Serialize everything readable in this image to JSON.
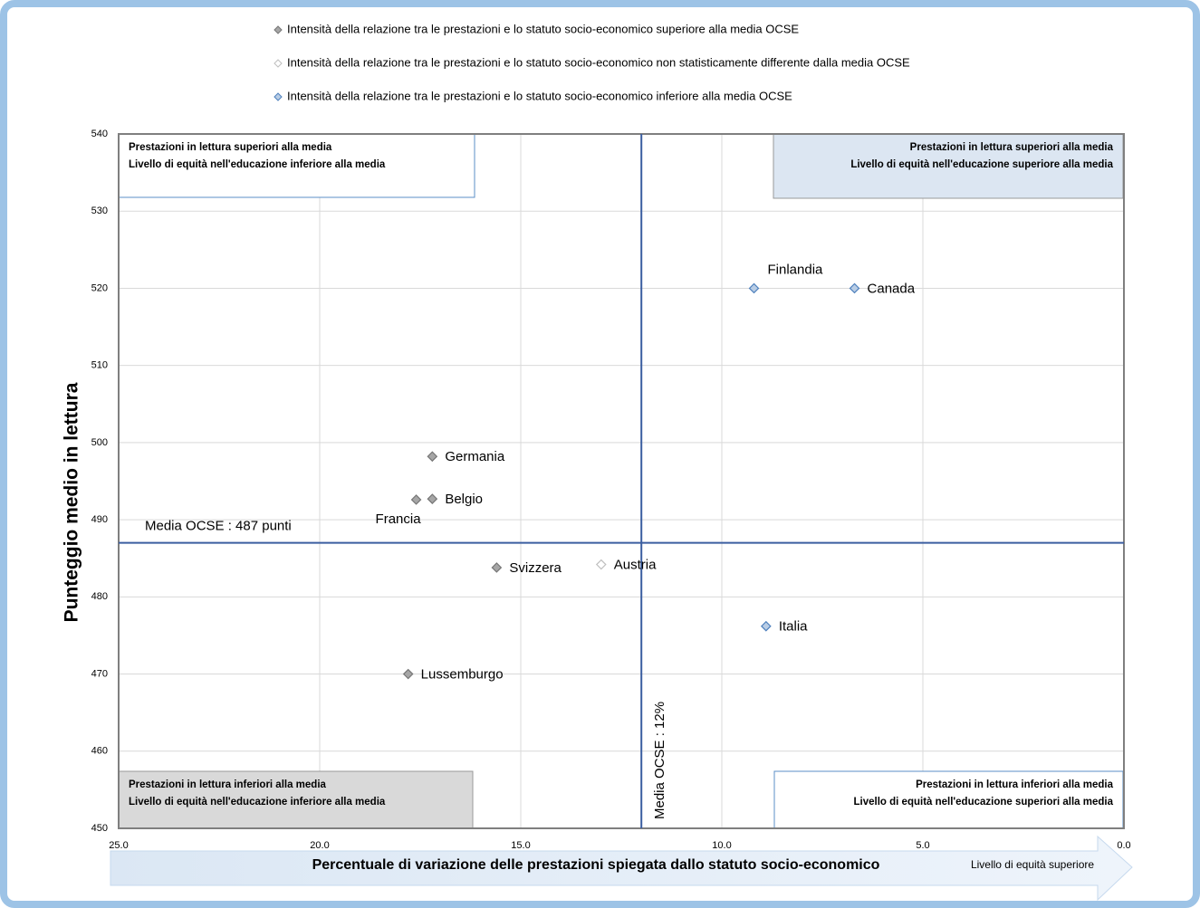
{
  "chart_data": {
    "type": "scatter",
    "xlabel": "Percentuale di variazione delle prestazioni spiegata dallo statuto socio-economico",
    "ylabel": "Punteggio medio in lettura",
    "x_direction_label": "Livello di equità superiore",
    "xlim": [
      25,
      0
    ],
    "ylim": [
      450,
      540
    ],
    "xticks": [
      {
        "value": 25,
        "label": "25.0"
      },
      {
        "value": 20,
        "label": "20.0"
      },
      {
        "value": 15,
        "label": "15.0"
      },
      {
        "value": 10,
        "label": "10.0"
      },
      {
        "value": 5,
        "label": "5.0"
      },
      {
        "value": 0,
        "label": "0.0"
      }
    ],
    "yticks": [
      450,
      460,
      470,
      480,
      490,
      500,
      510,
      520,
      530,
      540
    ],
    "grid": true,
    "series": [
      {
        "name": "Intensità della relazione tra le prestazioni e lo statuto socio-economico superiore alla media OCSE",
        "color": "#a6a6a6",
        "edgecolor": "#767676",
        "labels": [
          "Germania",
          "Belgio",
          "Francia",
          "Svizzera",
          "Lussemburgo"
        ],
        "x": [
          17.2,
          17.2,
          17.6,
          15.6,
          17.8
        ],
        "values": [
          498.2,
          492.7,
          492.6,
          483.8,
          470
        ]
      },
      {
        "name": "Intensità della relazione tra le prestazioni e lo statuto socio-economico non statisticamente differente dalla media OCSE",
        "color": "#ffffff",
        "edgecolor": "#bfbfbf",
        "labels": [
          "Austria"
        ],
        "x": [
          13.0
        ],
        "values": [
          484.2
        ]
      },
      {
        "name": "Intensità della relazione tra le prestazioni e lo statuto socio-economico inferiore alla media OCSE",
        "color": "#b9cde5",
        "edgecolor": "#4f81bd",
        "labels": [
          "Finlandia",
          "Canada",
          "Italia"
        ],
        "x": [
          9.2,
          6.7,
          8.9
        ],
        "values": [
          520,
          520,
          476.2
        ]
      }
    ],
    "reference_lines": [
      {
        "axis": "y",
        "value": 487,
        "label": "Media OCSE : 487 punti"
      },
      {
        "axis": "x",
        "value": 12,
        "label": "Media OCSE : 12%"
      }
    ],
    "quadrants": [
      {
        "lines": [
          "Prestazioni in lettura superiori alla media",
          "Livello di equità nell'educazione inferiore alla media"
        ]
      },
      {
        "lines": [
          "Prestazioni in lettura superiori alla media",
          "Livello di equità nell'educazione superiore alla media"
        ]
      },
      {
        "lines": [
          "Prestazioni in lettura inferiori alla media",
          "Livello di equità nell'educazione inferiore alla media"
        ]
      },
      {
        "lines": [
          "Prestazioni in lettura inferiori alla media",
          "Livello di equità nell'educazione superiori alla media"
        ]
      }
    ]
  }
}
